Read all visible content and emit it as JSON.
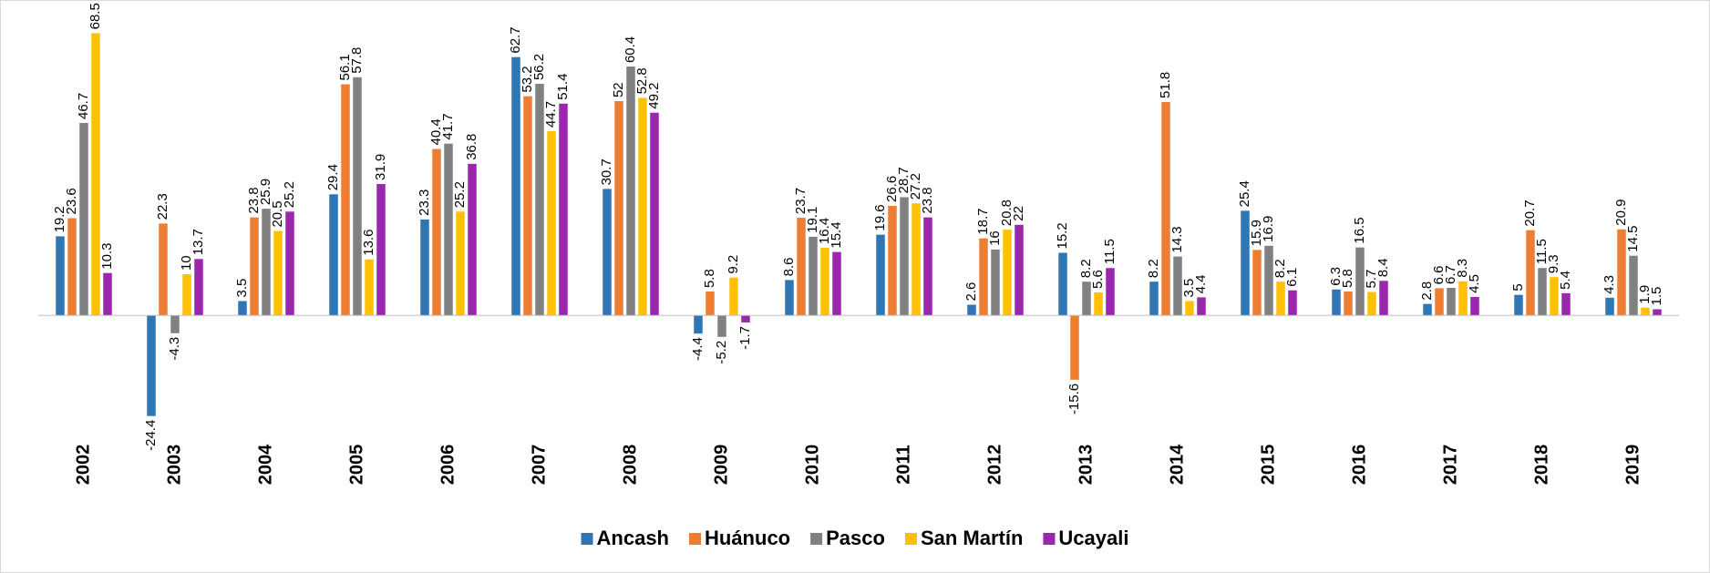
{
  "chart_data": {
    "type": "bar",
    "categories": [
      "2002",
      "2003",
      "2004",
      "2005",
      "2006",
      "2007",
      "2008",
      "2009",
      "2010",
      "2011",
      "2012",
      "2013",
      "2014",
      "2015",
      "2016",
      "2017",
      "2018",
      "2019"
    ],
    "ylim": [
      -30,
      75
    ],
    "series": [
      {
        "name": "Ancash",
        "color": "#2e75b6",
        "values": [
          19.2,
          -24.4,
          3.5,
          29.4,
          23.3,
          62.7,
          30.7,
          -4.4,
          8.6,
          19.6,
          2.6,
          15.2,
          8.2,
          25.4,
          6.3,
          2.8,
          5,
          4.3
        ]
      },
      {
        "name": "Huánuco",
        "color": "#ed7d31",
        "values": [
          23.6,
          22.3,
          23.8,
          56.1,
          40.4,
          53.2,
          52,
          5.8,
          23.7,
          26.6,
          18.7,
          -15.6,
          51.8,
          15.9,
          5.8,
          6.6,
          20.7,
          20.9
        ]
      },
      {
        "name": "Pasco",
        "color": "#808080",
        "values": [
          46.7,
          -4.3,
          25.9,
          57.8,
          41.7,
          56.2,
          60.4,
          -5.2,
          19.1,
          28.7,
          16,
          8.2,
          14.3,
          16.9,
          16.5,
          6.7,
          11.5,
          14.5
        ]
      },
      {
        "name": "San Martín",
        "color": "#ffc000",
        "values": [
          68.5,
          10,
          20.5,
          13.6,
          25.2,
          44.7,
          52.8,
          9.2,
          16.4,
          27.2,
          20.8,
          5.6,
          3.5,
          8.2,
          5.7,
          8.3,
          9.3,
          1.9
        ]
      },
      {
        "name": "Ucayali",
        "color": "#9b27af",
        "values": [
          10.3,
          13.7,
          25.2,
          31.9,
          36.8,
          51.4,
          49.2,
          -1.7,
          15.4,
          23.8,
          22,
          11.5,
          4.4,
          6.1,
          8.4,
          4.5,
          5.4,
          1.5
        ]
      }
    ],
    "legend": "bottom"
  }
}
